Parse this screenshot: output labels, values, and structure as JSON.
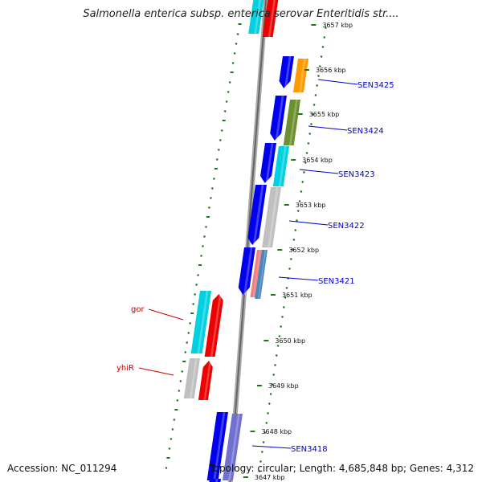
{
  "header": {
    "title": "Salmonella enterica subsp. enterica serovar Enteritidis str...."
  },
  "footer": {
    "accession": "Accession: NC_011294",
    "summary": "Topology: circular; Length: 4,685,848 bp; Genes: 4,312"
  },
  "colors": {
    "backbone": "#888888",
    "tick": "#1a7a1a",
    "label_blue": "#0000cc",
    "label_red": "#cc0000",
    "cds_blue": "#0000ee",
    "cyan": "#00d0e0",
    "orange": "#ff9a00",
    "olive": "#6b9030",
    "grey": "#c0c0c0",
    "red": "#ee0000",
    "pink": "#f08080",
    "steel": "#4a86c0",
    "slate": "#7070d0"
  },
  "scale": {
    "labels": [
      {
        "text": "3657 kbp",
        "kbp": 3657
      },
      {
        "text": "3656 kbp",
        "kbp": 3656
      },
      {
        "text": "3655 kbp",
        "kbp": 3655
      },
      {
        "text": "3654 kbp",
        "kbp": 3654
      },
      {
        "text": "3653 kbp",
        "kbp": 3653
      },
      {
        "text": "3652 kbp",
        "kbp": 3652
      },
      {
        "text": "3651 kbp",
        "kbp": 3651
      },
      {
        "text": "3650 kbp",
        "kbp": 3650
      },
      {
        "text": "3649 kbp",
        "kbp": 3649
      },
      {
        "text": "3648 kbp",
        "kbp": 3648
      },
      {
        "text": "3647 kbp",
        "kbp": 3647
      }
    ]
  },
  "gene_labels": [
    {
      "text": "SEN3425",
      "color": "blue",
      "side": "outer"
    },
    {
      "text": "SEN3424",
      "color": "blue",
      "side": "outer"
    },
    {
      "text": "SEN3423",
      "color": "blue",
      "side": "outer"
    },
    {
      "text": "SEN3422",
      "color": "blue",
      "side": "outer"
    },
    {
      "text": "SEN3421",
      "color": "blue",
      "side": "outer"
    },
    {
      "text": "gor",
      "color": "red",
      "side": "inner"
    },
    {
      "text": "yhiR",
      "color": "red",
      "side": "inner"
    },
    {
      "text": "SEN3418",
      "color": "blue",
      "side": "outer"
    }
  ],
  "features": [
    {
      "name": "top-cyan",
      "color": "cyan"
    },
    {
      "name": "top-red",
      "color": "red"
    },
    {
      "name": "cds-3425",
      "color": "cds_blue"
    },
    {
      "name": "orange-3425",
      "color": "orange"
    },
    {
      "name": "cds-3424",
      "color": "cds_blue"
    },
    {
      "name": "olive-3424",
      "color": "olive"
    },
    {
      "name": "cds-3423",
      "color": "cds_blue"
    },
    {
      "name": "cyan-3423",
      "color": "cyan"
    },
    {
      "name": "cds-3422",
      "color": "cds_blue"
    },
    {
      "name": "grey-3422",
      "color": "grey"
    },
    {
      "name": "cds-3421",
      "color": "cds_blue"
    },
    {
      "name": "pink-3421",
      "color": "pink"
    },
    {
      "name": "steel-3421",
      "color": "steel"
    },
    {
      "name": "gor-cyan",
      "color": "cyan"
    },
    {
      "name": "gor-red",
      "color": "red"
    },
    {
      "name": "yhiR-grey",
      "color": "grey"
    },
    {
      "name": "yhiR-red",
      "color": "red"
    },
    {
      "name": "cds-3418",
      "color": "cds_blue"
    },
    {
      "name": "slate-3418",
      "color": "slate"
    },
    {
      "name": "bottom-blue",
      "color": "cds_blue"
    }
  ]
}
